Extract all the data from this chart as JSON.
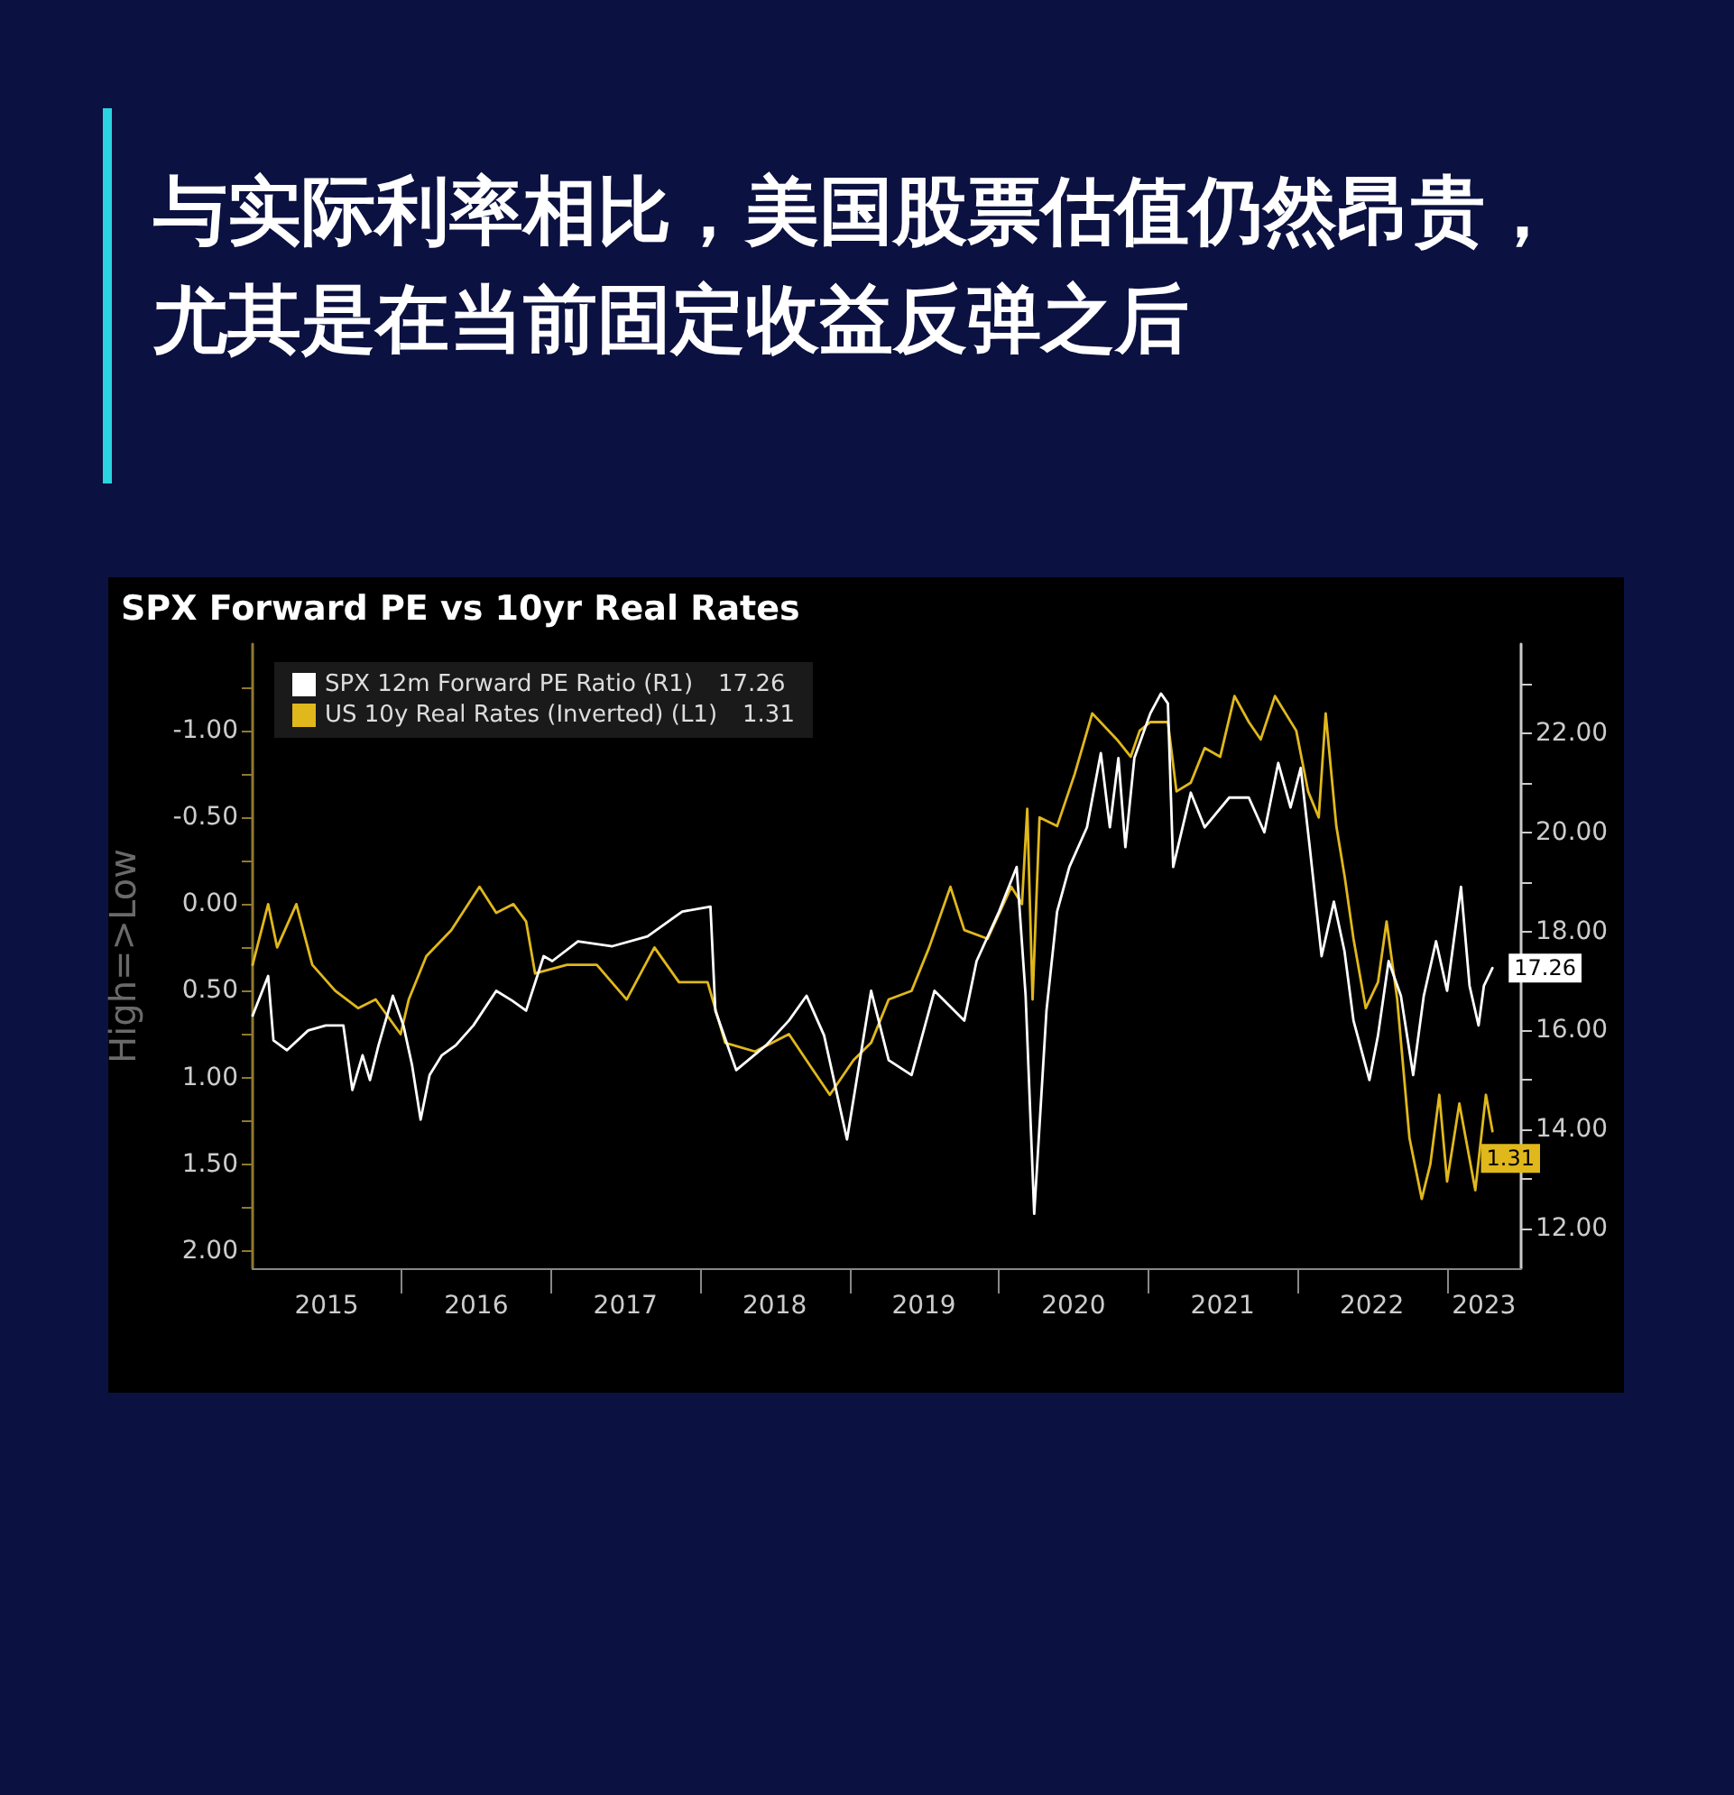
{
  "chart_data": {
    "type": "line",
    "title": "与实际利率相比，美国股票估值仍然昂贵，尤其是在当前固定收益反弹之后",
    "subtitle": "SPX Forward PE vs 10yr Real Rates",
    "ylabel": "High=>Low",
    "legend": "top left",
    "xlim": [
      "2015-01-01",
      "2023-07-01"
    ],
    "xticks": [
      {
        "value": "2015-07-01",
        "label": "2015"
      },
      {
        "value": "2016-01-01",
        "label": null
      },
      {
        "value": "2016-07-01",
        "label": "2016"
      },
      {
        "value": "2017-01-01",
        "label": null
      },
      {
        "value": "2017-07-01",
        "label": "2017"
      },
      {
        "value": "2018-01-01",
        "label": null
      },
      {
        "value": "2018-07-01",
        "label": "2018"
      },
      {
        "value": "2019-01-01",
        "label": null
      },
      {
        "value": "2019-07-01",
        "label": "2019"
      },
      {
        "value": "2020-01-01",
        "label": null
      },
      {
        "value": "2020-07-01",
        "label": "2020"
      },
      {
        "value": "2021-01-01",
        "label": null
      },
      {
        "value": "2021-07-01",
        "label": "2021"
      },
      {
        "value": "2022-01-01",
        "label": null
      },
      {
        "value": "2022-07-01",
        "label": "2022"
      },
      {
        "value": "2023-01-01",
        "label": null
      },
      {
        "value": "2023-04-01",
        "label": "2023"
      }
    ],
    "ylim": [
      2.1,
      -1.5
    ],
    "yticks": [
      {
        "value": -1.25,
        "label": null
      },
      {
        "value": -1,
        "label": "-1.00"
      },
      {
        "value": -0.75,
        "label": null
      },
      {
        "value": -0.5,
        "label": "-0.50"
      },
      {
        "value": -0.25,
        "label": null
      },
      {
        "value": 0,
        "label": "0.00"
      },
      {
        "value": 0.25,
        "label": null
      },
      {
        "value": 0.5,
        "label": "0.50"
      },
      {
        "value": 0.75,
        "label": null
      },
      {
        "value": 1,
        "label": "1.00"
      },
      {
        "value": 1.25,
        "label": null
      },
      {
        "value": 1.5,
        "label": "1.50"
      },
      {
        "value": 1.75,
        "label": null
      },
      {
        "value": 2,
        "label": "2.00"
      }
    ],
    "y2lim": [
      11.2,
      23.8
    ],
    "y2ticks": [
      {
        "value": 12,
        "label": "12.00"
      },
      {
        "value": 13,
        "label": null
      },
      {
        "value": 14,
        "label": "14.00"
      },
      {
        "value": 15,
        "label": null
      },
      {
        "value": 16,
        "label": "16.00"
      },
      {
        "value": 17,
        "label": null
      },
      {
        "value": 18,
        "label": "18.00"
      },
      {
        "value": 19,
        "label": null
      },
      {
        "value": 20,
        "label": "20.00"
      },
      {
        "value": 21,
        "label": null
      },
      {
        "value": 22,
        "label": "22.00"
      },
      {
        "value": 23,
        "label": null
      }
    ],
    "series": [
      {
        "name": "SPX 12m Forward PE Ratio (R1)",
        "color": "#ffffff",
        "axis": "y2",
        "x": [
          "2015-01-01",
          "2015-02-08",
          "2015-02-21",
          "2015-03-26",
          "2015-05-17",
          "2015-06-29",
          "2015-08-11",
          "2015-09-02",
          "2015-09-27",
          "2015-10-15",
          "2015-11-05",
          "2015-12-10",
          "2016-01-05",
          "2016-01-26",
          "2016-02-16",
          "2016-03-09",
          "2016-04-08",
          "2016-05-12",
          "2016-06-24",
          "2016-08-19",
          "2016-09-27",
          "2016-10-31",
          "2016-12-13",
          "2017-01-03",
          "2017-03-07",
          "2017-05-30",
          "2017-08-24",
          "2017-11-17",
          "2018-01-25",
          "2018-02-06",
          "2018-03-29",
          "2018-06-10",
          "2018-08-05",
          "2018-09-17",
          "2018-10-30",
          "2018-12-25",
          "2019-02-22",
          "2019-04-06",
          "2019-06-01",
          "2019-07-27",
          "2019-10-08",
          "2019-11-07",
          "2020-01-01",
          "2020-02-13",
          "2020-03-06",
          "2020-03-27",
          "2020-04-26",
          "2020-05-22",
          "2020-06-21",
          "2020-08-03",
          "2020-09-06",
          "2020-09-28",
          "2020-10-19",
          "2020-11-05",
          "2020-11-27",
          "2021-01-05",
          "2021-01-31",
          "2021-02-17",
          "2021-03-02",
          "2021-04-14",
          "2021-05-18",
          "2021-07-17",
          "2021-09-03",
          "2021-10-11",
          "2021-11-14",
          "2021-12-14",
          "2022-01-08",
          "2022-01-30",
          "2022-02-28",
          "2022-03-30",
          "2022-04-25",
          "2022-05-17",
          "2022-06-25",
          "2022-07-16",
          "2022-08-11",
          "2022-09-10",
          "2022-10-10",
          "2022-11-05",
          "2022-12-05",
          "2023-01-01",
          "2023-02-04",
          "2023-02-25",
          "2023-03-19",
          "2023-04-01",
          "2023-04-22"
        ],
        "values": [
          16.3,
          17.1,
          15.8,
          15.6,
          16.0,
          16.1,
          16.1,
          14.8,
          15.5,
          15.0,
          15.7,
          16.7,
          16.1,
          15.3,
          14.2,
          15.1,
          15.5,
          15.7,
          16.1,
          16.8,
          16.6,
          16.4,
          17.5,
          17.4,
          17.8,
          17.7,
          17.9,
          18.4,
          18.5,
          16.4,
          15.2,
          15.7,
          16.2,
          16.7,
          15.9,
          13.8,
          16.8,
          15.4,
          15.1,
          16.8,
          16.2,
          17.4,
          18.4,
          19.3,
          16.7,
          12.3,
          16.4,
          18.4,
          19.3,
          20.1,
          21.6,
          20.1,
          21.5,
          19.7,
          21.5,
          22.4,
          22.8,
          22.6,
          19.3,
          20.8,
          20.1,
          20.7,
          20.7,
          20.0,
          21.4,
          20.5,
          21.3,
          19.7,
          17.5,
          18.6,
          17.6,
          16.2,
          15.0,
          15.9,
          17.4,
          16.7,
          15.1,
          16.7,
          17.8,
          16.8,
          18.9,
          16.9,
          16.1,
          16.9,
          17.26
        ],
        "value_labels": [
          null,
          null,
          null,
          null,
          null,
          null,
          null,
          null,
          null,
          null,
          null,
          null,
          null,
          null,
          null,
          null,
          null,
          null,
          null,
          null,
          null,
          null,
          null,
          null,
          null,
          null,
          null,
          null,
          null,
          null,
          null,
          null,
          null,
          null,
          null,
          null,
          null,
          null,
          null,
          null,
          null,
          null,
          null,
          null,
          null,
          null,
          null,
          null,
          null,
          null,
          null,
          null,
          null,
          null,
          null,
          null,
          null,
          null,
          null,
          null,
          null,
          null,
          null,
          null,
          null,
          null,
          null,
          null,
          null,
          null,
          null,
          null,
          null,
          null,
          null,
          null,
          null,
          null,
          null,
          null,
          null,
          null,
          null,
          null,
          "17.26"
        ]
      },
      {
        "name": "US 10y Real Rates (Inverted) (L1)",
        "color": "#e0b81c",
        "axis": "y",
        "x": [
          "2015-01-01",
          "2015-02-08",
          "2015-03-02",
          "2015-04-18",
          "2015-05-27",
          "2015-07-22",
          "2015-09-16",
          "2015-10-29",
          "2015-12-29",
          "2016-01-18",
          "2016-03-01",
          "2016-05-01",
          "2016-07-09",
          "2016-08-19",
          "2016-09-30",
          "2016-10-31",
          "2016-11-22",
          "2017-02-08",
          "2017-04-22",
          "2017-07-04",
          "2017-09-10",
          "2017-11-09",
          "2018-01-18",
          "2018-03-02",
          "2018-05-14",
          "2018-08-05",
          "2018-10-01",
          "2018-11-13",
          "2019-01-10",
          "2019-02-22",
          "2019-04-06",
          "2019-06-01",
          "2019-07-14",
          "2019-09-04",
          "2019-10-08",
          "2019-12-04",
          "2020-01-31",
          "2020-02-26",
          "2020-03-10",
          "2020-03-23",
          "2020-04-09",
          "2020-05-22",
          "2020-07-04",
          "2020-08-16",
          "2020-10-15",
          "2020-11-18",
          "2020-12-10",
          "2021-01-05",
          "2021-02-17",
          "2021-03-10",
          "2021-04-14",
          "2021-05-18",
          "2021-06-25",
          "2021-07-30",
          "2021-09-03",
          "2021-10-02",
          "2021-11-06",
          "2021-12-28",
          "2022-01-26",
          "2022-02-21",
          "2022-03-10",
          "2022-04-05",
          "2022-04-26",
          "2022-05-17",
          "2022-06-16",
          "2022-07-16",
          "2022-08-06",
          "2022-09-01",
          "2022-10-01",
          "2022-10-31",
          "2022-11-21",
          "2022-12-13",
          "2023-01-01",
          "2023-01-31",
          "2023-03-11",
          "2023-04-06",
          "2023-04-22"
        ],
        "values": [
          0.35,
          0.0,
          0.25,
          0.0,
          0.35,
          0.5,
          0.6,
          0.55,
          0.75,
          0.55,
          0.3,
          0.15,
          -0.1,
          0.05,
          0.0,
          0.1,
          0.4,
          0.35,
          0.35,
          0.55,
          0.25,
          0.45,
          0.45,
          0.8,
          0.85,
          0.75,
          0.95,
          1.1,
          0.9,
          0.8,
          0.55,
          0.5,
          0.25,
          -0.1,
          0.15,
          0.2,
          -0.1,
          0.0,
          -0.55,
          0.55,
          -0.5,
          -0.45,
          -0.75,
          -1.1,
          -0.95,
          -0.85,
          -1.0,
          -1.05,
          -1.05,
          -0.65,
          -0.7,
          -0.9,
          -0.85,
          -1.2,
          -1.05,
          -0.95,
          -1.2,
          -1.0,
          -0.65,
          -0.5,
          -1.1,
          -0.45,
          -0.15,
          0.2,
          0.6,
          0.45,
          0.1,
          0.55,
          1.35,
          1.7,
          1.5,
          1.1,
          1.6,
          1.15,
          1.65,
          1.1,
          1.31
        ],
        "value_labels": [
          null,
          null,
          null,
          null,
          null,
          null,
          null,
          null,
          null,
          null,
          null,
          null,
          null,
          null,
          null,
          null,
          null,
          null,
          null,
          null,
          null,
          null,
          null,
          null,
          null,
          null,
          null,
          null,
          null,
          null,
          null,
          null,
          null,
          null,
          null,
          null,
          null,
          null,
          null,
          null,
          null,
          null,
          null,
          null,
          null,
          null,
          null,
          null,
          null,
          null,
          null,
          null,
          null,
          null,
          null,
          null,
          null,
          null,
          null,
          null,
          null,
          null,
          null,
          null,
          null,
          null,
          null,
          null,
          null,
          null,
          null,
          null,
          null,
          null,
          null,
          null,
          "1.31"
        ]
      }
    ]
  }
}
